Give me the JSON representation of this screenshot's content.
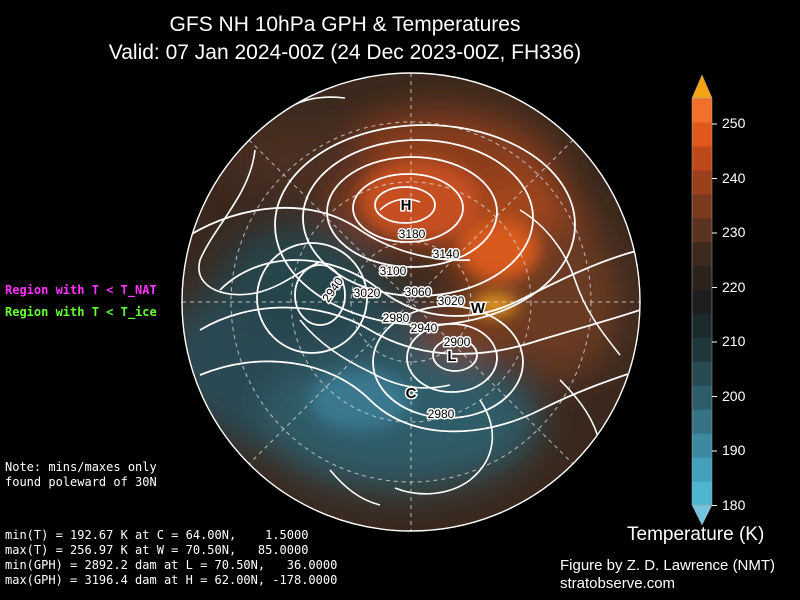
{
  "title": {
    "line1": "GFS NH 10hPa GPH & Temperatures",
    "line2": "Valid: 07 Jan 2024-00Z  (24 Dec 2023-00Z, FH336)"
  },
  "legend": {
    "nat_label": "Region with T < T_NAT",
    "nat_color": "#ff33ff",
    "ice_label": "Region with T < T_ice",
    "ice_color": "#66ff33"
  },
  "note": {
    "line1": "Note: mins/maxes only",
    "line2": "found poleward of 30N"
  },
  "stats": {
    "min_t": "min(T) = 192.67 K at C = 64.00N,    1.5000",
    "max_t": "max(T) = 256.97 K at W = 70.50N,   85.0000",
    "min_gph": "min(GPH) = 2892.2 dam at L = 70.50N,   36.0000",
    "max_gph": "max(GPH) = 3196.4 dam at H = 62.00N, -178.0000"
  },
  "credit": {
    "line1": "Figure by Z. D. Lawrence (NMT)",
    "line2": "stratobserve.com"
  },
  "map": {
    "markers": {
      "high": "H",
      "low": "L",
      "cold": "C",
      "warm": "W"
    },
    "contour_labels": [
      "3180",
      "3140",
      "3100",
      "3060",
      "3020",
      "3020",
      "2980",
      "2940",
      "2940",
      "2900",
      "2980"
    ]
  },
  "colorbar": {
    "title": "Temperature (K)",
    "ticks": [
      "250",
      "240",
      "230",
      "220",
      "210",
      "200",
      "190",
      "180"
    ],
    "colors": [
      "#4fb6d2",
      "#44a0ba",
      "#3c8aa0",
      "#367384",
      "#2e5d6a",
      "#284a52",
      "#20373c",
      "#1c2a2c",
      "#1e1e1e",
      "#2c221c",
      "#3c2a1e",
      "#5a3420",
      "#7a3a1e",
      "#9a401c",
      "#be4a1c",
      "#e0581c",
      "#f2702a"
    ],
    "min_extend_color": "#77c4de",
    "max_extend_color": "#f7a30f"
  }
}
